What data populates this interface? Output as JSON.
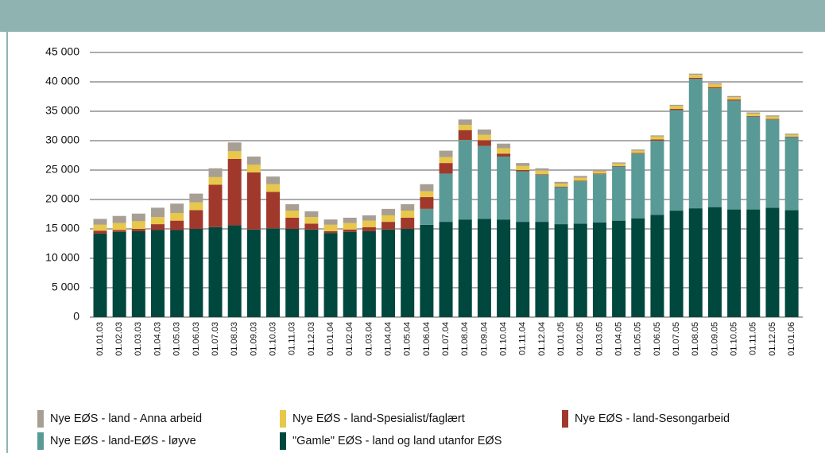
{
  "chart_data": {
    "type": "stacked-bar",
    "categories": [
      "01.01.03",
      "01.02.03",
      "01.03.03",
      "01.04.03",
      "01.05.03",
      "01.06.03",
      "01.07.03",
      "01.08.03",
      "01.09.03",
      "01.10.03",
      "01.11.03",
      "01.12.03",
      "01.01.04",
      "01.02.04",
      "01.03.04",
      "01.04.04",
      "01.05.04",
      "01.06.04",
      "01.07.04",
      "01.08.04",
      "01.09.04",
      "01.10.04",
      "01.11.04",
      "01.12.04",
      "01.01.05",
      "01.02.05",
      "01.03.05",
      "01.04.05",
      "01.05.05",
      "01.06.05",
      "01.07.05",
      "01.08.05",
      "01.09.05",
      "01.10.05",
      "01.11.05",
      "01.12.05",
      "01.01.06"
    ],
    "series": [
      {
        "name": "Nye EØS - land - Anna arbeid",
        "color": "#a89f94",
        "values": [
          1000,
          1200,
          1300,
          1600,
          1600,
          1500,
          1500,
          1500,
          1400,
          1300,
          1100,
          1000,
          900,
          900,
          900,
          1100,
          1100,
          1200,
          1100,
          900,
          900,
          800,
          500,
          400,
          300,
          300,
          200,
          200,
          200,
          200,
          200,
          200,
          200,
          200,
          200,
          200,
          200
        ]
      },
      {
        "name": "Nye EØS - land-Spesialist/faglært",
        "color": "#e8c74a",
        "values": [
          1000,
          1200,
          1300,
          1200,
          1300,
          1300,
          1300,
          1300,
          1300,
          1300,
          1200,
          1100,
          1100,
          1100,
          1100,
          1100,
          1200,
          1000,
          1000,
          900,
          900,
          900,
          700,
          600,
          500,
          500,
          400,
          400,
          400,
          500,
          500,
          500,
          500,
          400,
          400,
          400,
          300
        ]
      },
      {
        "name": "Nye EØS - land-Sesongarbeid",
        "color": "#a0392b",
        "values": [
          500,
          300,
          400,
          1000,
          1600,
          3200,
          7200,
          11300,
          9700,
          6200,
          1900,
          1000,
          300,
          400,
          700,
          1300,
          1900,
          2000,
          1800,
          1700,
          1000,
          500,
          200,
          100,
          100,
          100,
          100,
          100,
          100,
          200,
          200,
          200,
          200,
          200,
          100,
          100,
          100
        ]
      },
      {
        "name": "Nye EØS - land-EØS - løyve",
        "color": "#5a9a96",
        "values": [
          0,
          0,
          0,
          0,
          0,
          0,
          0,
          0,
          0,
          0,
          0,
          0,
          0,
          0,
          0,
          0,
          0,
          2700,
          8200,
          13500,
          12400,
          10700,
          8600,
          8000,
          6300,
          7200,
          8200,
          9200,
          11000,
          12600,
          17100,
          22000,
          20200,
          18500,
          15800,
          15000,
          12400
        ]
      },
      {
        "name": "\"Gamle\" EØS - land og land utanfor EØS",
        "color": "#00473e",
        "values": [
          14200,
          14500,
          14600,
          14800,
          14800,
          15000,
          15300,
          15600,
          14900,
          15100,
          15000,
          14900,
          14300,
          14500,
          14600,
          14900,
          15000,
          15700,
          16200,
          16600,
          16700,
          16600,
          16200,
          16200,
          15800,
          15900,
          16100,
          16400,
          16800,
          17400,
          18100,
          18500,
          18700,
          18300,
          18300,
          18600,
          18200
        ]
      }
    ],
    "ylim": [
      0,
      45000
    ],
    "yticks": [
      0,
      {
        "value": 5000,
        "label": "5 000"
      },
      {
        "value": 10000,
        "label": "10 000"
      },
      {
        "value": 15000,
        "label": "15 000"
      },
      {
        "value": 20000,
        "label": "20 000"
      },
      {
        "value": 25000,
        "label": "25 000"
      },
      {
        "value": 30000,
        "label": "30 000"
      },
      {
        "value": 35000,
        "label": "35 000"
      },
      {
        "value": 40000,
        "label": "40 000"
      },
      {
        "value": 45000,
        "label": "45 000"
      }
    ],
    "grid": true
  }
}
